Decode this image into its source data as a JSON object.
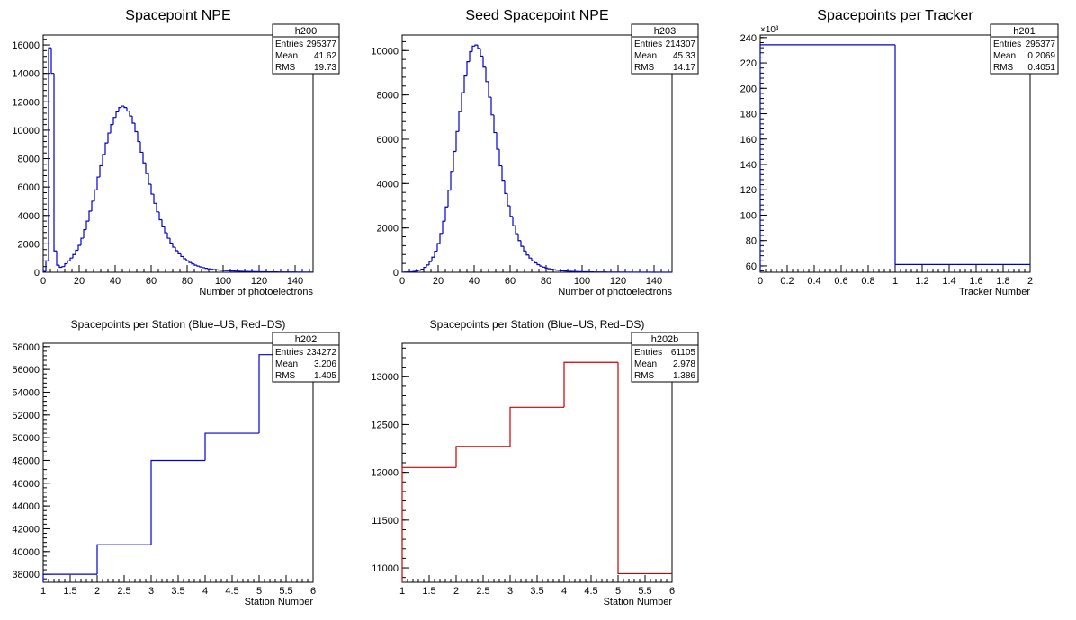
{
  "chart_data": [
    {
      "id": "h200",
      "type": "histogram",
      "title": "Spacepoint NPE",
      "xlabel": "Number of photoelectrons",
      "ylabel": "",
      "xlim": [
        0,
        150
      ],
      "ylim": [
        0,
        16700
      ],
      "xticks": [
        0,
        20,
        40,
        60,
        80,
        100,
        120,
        140
      ],
      "yticks": [
        0,
        2000,
        4000,
        6000,
        8000,
        10000,
        12000,
        14000,
        16000
      ],
      "color": "#0000cc",
      "stats": {
        "name": "h200",
        "rows": [
          [
            "Entries",
            "295377"
          ],
          [
            "Mean",
            "41.62"
          ],
          [
            "RMS",
            "19.73"
          ]
        ]
      },
      "bin_width": 1.5,
      "values": [
        60,
        800,
        15800,
        14000,
        1500,
        500,
        350,
        400,
        600,
        800,
        1000,
        1250,
        1550,
        1900,
        2400,
        3000,
        3600,
        4300,
        5000,
        5800,
        6700,
        7500,
        8300,
        9100,
        9800,
        10400,
        10900,
        11300,
        11600,
        11700,
        11600,
        11350,
        11000,
        10500,
        9900,
        9200,
        8450,
        7700,
        6950,
        6200,
        5500,
        4850,
        4250,
        3700,
        3200,
        2780,
        2400,
        2060,
        1770,
        1520,
        1300,
        1110,
        950,
        810,
        690,
        590,
        500,
        430,
        370,
        320,
        275,
        240,
        210,
        185,
        165,
        148,
        132,
        118,
        106,
        96,
        87,
        79,
        72,
        66,
        60,
        55,
        50,
        46,
        42,
        38,
        35,
        32,
        30,
        28,
        26,
        24,
        22,
        20,
        19,
        18,
        17,
        16,
        15,
        14,
        13,
        12,
        11,
        10,
        10,
        9
      ]
    },
    {
      "id": "h203",
      "type": "histogram",
      "title": "Seed Spacepoint NPE",
      "xlabel": "Number of photoelectrons",
      "ylabel": "",
      "xlim": [
        0,
        150
      ],
      "ylim": [
        0,
        10700
      ],
      "xticks": [
        0,
        20,
        40,
        60,
        80,
        100,
        120,
        140
      ],
      "yticks": [
        0,
        2000,
        4000,
        6000,
        8000,
        10000
      ],
      "color": "#0000cc",
      "stats": {
        "name": "h203",
        "rows": [
          [
            "Entries",
            "214307"
          ],
          [
            "Mean",
            "45.33"
          ],
          [
            "RMS",
            "14.17"
          ]
        ]
      },
      "bin_width": 1.5,
      "values": [
        5,
        10,
        15,
        20,
        35,
        55,
        90,
        140,
        220,
        330,
        480,
        680,
        950,
        1300,
        1750,
        2300,
        2950,
        3700,
        4550,
        5450,
        6350,
        7250,
        8100,
        8850,
        9500,
        9950,
        10200,
        10250,
        10100,
        9750,
        9250,
        8600,
        7900,
        7100,
        6300,
        5550,
        4800,
        4150,
        3550,
        3000,
        2520,
        2100,
        1740,
        1430,
        1170,
        960,
        780,
        640,
        520,
        425,
        345,
        280,
        230,
        190,
        158,
        132,
        110,
        92,
        78,
        66,
        56,
        48,
        41,
        36,
        31,
        27,
        24,
        21,
        19,
        17,
        15,
        13,
        12,
        11,
        10,
        9,
        8,
        7,
        6,
        6,
        5,
        5,
        4,
        4,
        4,
        3,
        3,
        3,
        2,
        2,
        2,
        2,
        2,
        1,
        1,
        1,
        1,
        1,
        1,
        1
      ]
    },
    {
      "id": "h201",
      "type": "histogram",
      "title": "Spacepoints per Tracker",
      "xlabel": "Tracker Number",
      "ylabel": "",
      "exponent_label": "×10³",
      "xlim": [
        0,
        2
      ],
      "ylim": [
        55,
        242
      ],
      "xticks": [
        0,
        0.2,
        0.4,
        0.6,
        0.8,
        1,
        1.2,
        1.4,
        1.6,
        1.8,
        2
      ],
      "yticks": [
        60,
        80,
        100,
        120,
        140,
        160,
        180,
        200,
        220,
        240
      ],
      "color": "#0000cc",
      "stats": {
        "name": "h201",
        "rows": [
          [
            "Entries",
            "295377"
          ],
          [
            "Mean",
            "0.2069"
          ],
          [
            "RMS",
            "0.4051"
          ]
        ]
      },
      "bin_width": 1,
      "values": [
        234.3,
        61.1
      ]
    },
    {
      "id": "h202",
      "type": "histogram",
      "title": "Spacepoints per Station (Blue=US, Red=DS)",
      "xlabel": "Station Number",
      "ylabel": "",
      "xlim": [
        1,
        6
      ],
      "ylim": [
        37300,
        58300
      ],
      "xticks": [
        1,
        1.5,
        2,
        2.5,
        3,
        3.5,
        4,
        4.5,
        5,
        5.5,
        6
      ],
      "yticks": [
        38000,
        40000,
        42000,
        44000,
        46000,
        48000,
        50000,
        52000,
        54000,
        56000,
        58000
      ],
      "color": "#0000cc",
      "stats": {
        "name": "h202",
        "rows": [
          [
            "Entries",
            "234272"
          ],
          [
            "Mean",
            "3.206"
          ],
          [
            "RMS",
            "1.405"
          ]
        ]
      },
      "bin_width": 1,
      "values": [
        38000,
        40600,
        48000,
        50400,
        57300
      ]
    },
    {
      "id": "h202b",
      "type": "histogram",
      "title": "Spacepoints per Station (Blue=US, Red=DS)",
      "xlabel": "Station Number",
      "ylabel": "",
      "xlim": [
        1,
        6
      ],
      "ylim": [
        10850,
        13350
      ],
      "xticks": [
        1,
        1.5,
        2,
        2.5,
        3,
        3.5,
        4,
        4.5,
        5,
        5.5,
        6
      ],
      "yticks": [
        11000,
        11500,
        12000,
        12500,
        13000
      ],
      "color": "#cc0000",
      "stats": {
        "name": "h202b",
        "rows": [
          [
            "Entries",
            "61105"
          ],
          [
            "Mean",
            "2.978"
          ],
          [
            "RMS",
            "1.386"
          ]
        ]
      },
      "bin_width": 1,
      "values": [
        12050,
        12270,
        12680,
        13150,
        10940
      ]
    }
  ]
}
